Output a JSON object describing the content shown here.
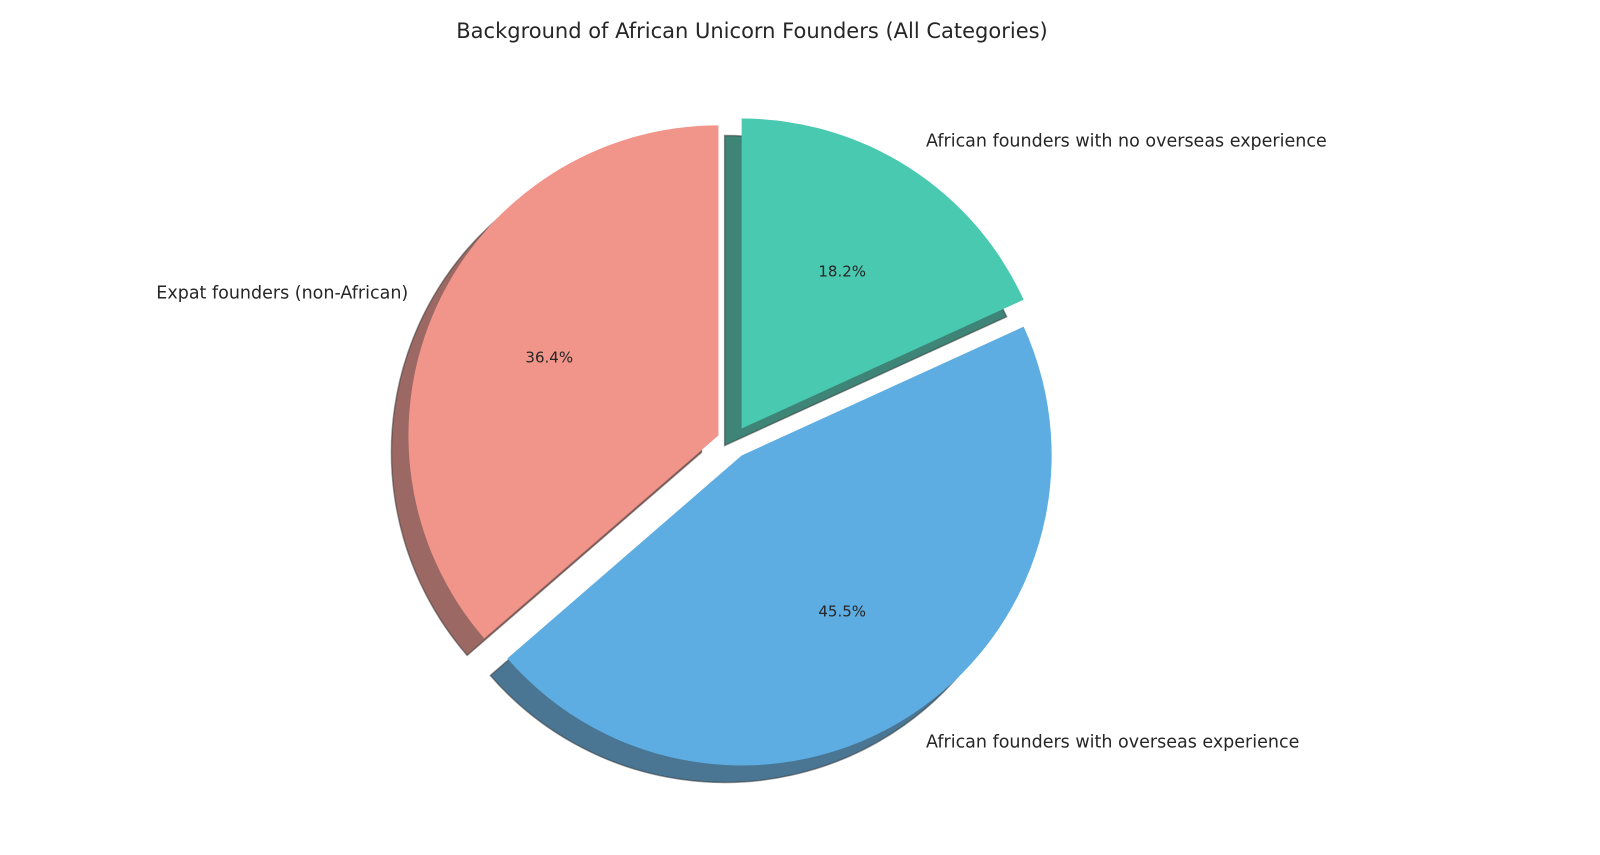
{
  "chart_data": {
    "type": "pie",
    "title": "Background of African Unicorn Founders (All Categories)",
    "categories": [
      "Expat founders (non-African)",
      "African founders with overseas experience",
      "African founders with no overseas experience"
    ],
    "values": [
      36.4,
      45.5,
      18.2
    ],
    "value_labels": [
      "36.4%",
      "45.5%",
      "18.2%"
    ],
    "colors": [
      "#f1948a",
      "#5dade2",
      "#48c9b0"
    ],
    "shadow": true
  }
}
